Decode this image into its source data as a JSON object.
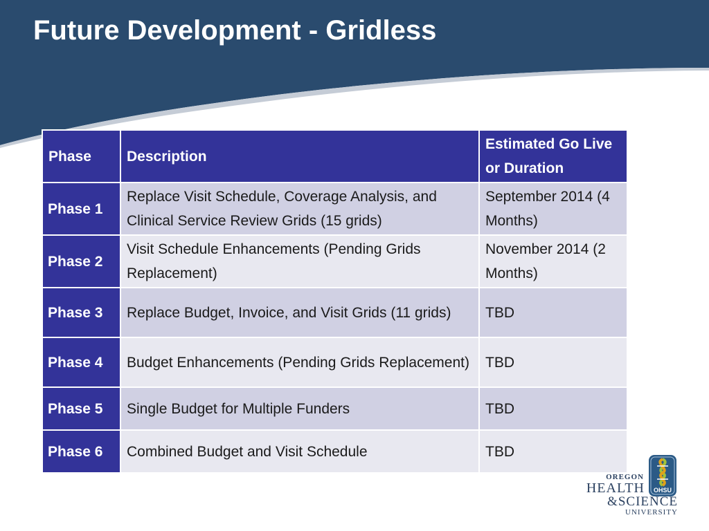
{
  "slide": {
    "title": "Future Development - Gridless"
  },
  "table": {
    "headers": [
      "Phase",
      "Description",
      "Estimated Go Live or Duration"
    ],
    "rows": [
      {
        "phase": "Phase 1",
        "description": "Replace Visit Schedule, Coverage Analysis, and Clinical Service Review Grids (15 grids)",
        "estimate": "September  2014 (4 Months)"
      },
      {
        "phase": "Phase 2",
        "description": "Visit Schedule Enhancements (Pending Grids Replacement)",
        "estimate": "November 2014 (2 Months)"
      },
      {
        "phase": "Phase 3",
        "description": "Replace Budget, Invoice, and Visit Grids (11 grids)",
        "estimate": "TBD"
      },
      {
        "phase": "Phase 4",
        "description": "Budget Enhancements (Pending Grids Replacement)",
        "estimate": "TBD"
      },
      {
        "phase": "Phase 5",
        "description": "Single Budget for Multiple Funders",
        "estimate": "TBD"
      },
      {
        "phase": "Phase 6",
        "description": "Combined Budget and Visit Schedule",
        "estimate": "TBD"
      }
    ]
  },
  "logo": {
    "line1": "OREGON",
    "line2": "HEALTH",
    "line3": "&SCIENCE",
    "line4": "UNIVERSITY",
    "badge": "OHSU"
  },
  "colors": {
    "header_band": "#2a4b6e",
    "table_header": "#333399",
    "row_shade_a": "#d0d0e3",
    "row_shade_b": "#e8e8f0"
  }
}
